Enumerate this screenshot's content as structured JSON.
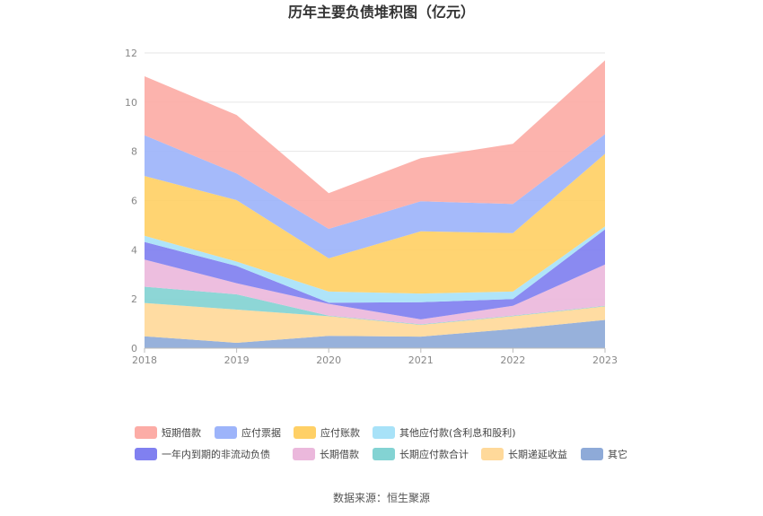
{
  "chart_data": {
    "type": "area",
    "stacked": true,
    "title": "历年主要负债堆积图（亿元）",
    "source": "数据来源：恒生聚源",
    "x": [
      "2018",
      "2019",
      "2020",
      "2021",
      "2022",
      "2023"
    ],
    "y_ticks": [
      "0",
      "2",
      "4",
      "6",
      "8",
      "10",
      "12"
    ],
    "ylim": [
      0,
      12
    ],
    "grid": true,
    "legend_position": "bottom",
    "series": [
      {
        "name": "其它",
        "color": "#8eaad8",
        "values": [
          0.48,
          0.22,
          0.5,
          0.47,
          0.78,
          1.15
        ]
      },
      {
        "name": "长期递延收益",
        "color": "#ffd99a",
        "values": [
          1.36,
          1.35,
          0.8,
          0.48,
          0.52,
          0.55
        ]
      },
      {
        "name": "长期应付款合计",
        "color": "#83d3d3",
        "values": [
          0.66,
          0.62,
          0.02,
          0.02,
          0.02,
          0.02
        ]
      },
      {
        "name": "长期借款",
        "color": "#ebb8dc",
        "values": [
          1.1,
          0.45,
          0.48,
          0.2,
          0.4,
          1.68
        ]
      },
      {
        "name": "一年内到期的非流动负债",
        "color": "#8080f0",
        "values": [
          0.72,
          0.7,
          0.05,
          0.7,
          0.28,
          1.43
        ]
      },
      {
        "name": "其他应付款(含利息和股利)",
        "color": "#a8e2f8",
        "values": [
          0.25,
          0.18,
          0.45,
          0.35,
          0.3,
          0.12
        ]
      },
      {
        "name": "应付账款",
        "color": "#ffd066",
        "values": [
          2.43,
          2.5,
          1.35,
          2.53,
          2.38,
          2.95
        ]
      },
      {
        "name": "应付票据",
        "color": "#9db4fa",
        "values": [
          1.65,
          1.08,
          1.2,
          1.22,
          1.18,
          0.8
        ]
      },
      {
        "name": "短期借款",
        "color": "#fcaca6",
        "values": [
          2.4,
          2.38,
          1.45,
          1.75,
          2.45,
          3.0
        ]
      }
    ],
    "legend_order": [
      "短期借款",
      "应付票据",
      "应付账款",
      "其他应付款(含利息和股利)",
      "一年内到期的非流动负债",
      "长期借款",
      "长期应付款合计",
      "长期递延收益",
      "其它"
    ]
  }
}
